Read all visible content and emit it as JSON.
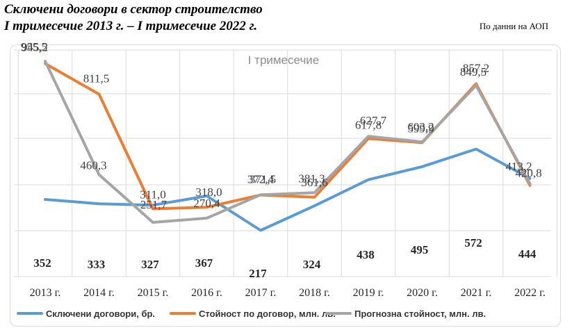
{
  "header": {
    "title_line1": "Сключени договори в сектор строителство",
    "title_line2": "I тримесечие 2013 г.  – I тримесечие 2022 г.",
    "source": "По данни на АОП"
  },
  "chart_data": {
    "type": "line",
    "title": "I тримесечие",
    "categories": [
      "2013 г.",
      "2014 г.",
      "2015 г.",
      "2016 г.",
      "2017 г.",
      "2018 г.",
      "2019 г.",
      "2020 г.",
      "2021 г.",
      "2022 г."
    ],
    "series": [
      {
        "name": "Сключени договори, бр.",
        "color": "#5b9bd5",
        "values": [
          352,
          333,
          327,
          367,
          217,
          324,
          438,
          495,
          572,
          444
        ],
        "labels": [
          "352",
          "333",
          "327",
          "367",
          "217",
          "324",
          "438",
          "495",
          "572",
          "444"
        ]
      },
      {
        "name": "Стойност по договор, млн. лв.",
        "color": "#ed7d31",
        "values": [
          945.2,
          811.5,
          311.0,
          318.0,
          371.5,
          361.6,
          617.8,
          599.9,
          857.2,
          413.2
        ],
        "labels": [
          "945,2",
          "811,5",
          "311,0",
          "318,0",
          "371,5",
          "361,6",
          "617,8",
          "599,9",
          "857,2",
          "413,2"
        ]
      },
      {
        "name": "Прогнозна стойност, млн. лв.",
        "color": "#a5a5a5",
        "values": [
          955.5,
          460.3,
          251.7,
          270.4,
          372.4,
          381.3,
          627.7,
          603.2,
          849.5,
          420.8
        ],
        "labels": [
          "955,5",
          "460,3",
          "251,7",
          "270,4",
          "372,4",
          "381,3",
          "627,7",
          "603,2",
          "849,5",
          "420,8"
        ]
      }
    ],
    "grid": true,
    "legend": "bottom"
  }
}
